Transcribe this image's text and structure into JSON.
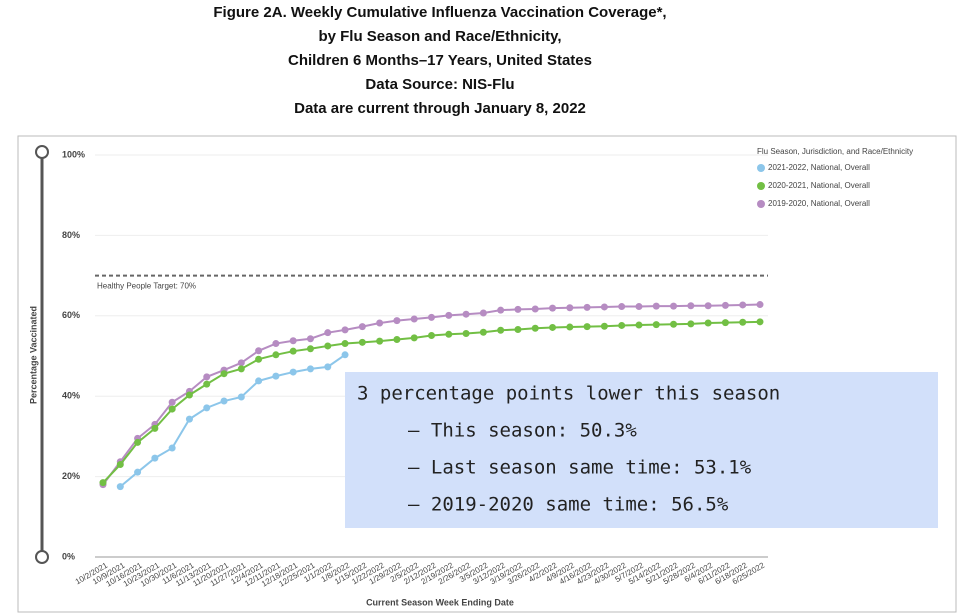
{
  "chart_data": {
    "type": "line",
    "title": [
      "Figure 2A. Weekly Cumulative Influenza Vaccination Coverage*,",
      "by Flu Season and Race/Ethnicity,",
      "Children 6 Months–17 Years, United States",
      "Data Source: NIS-Flu",
      "Data are current through January 8, 2022"
    ],
    "x_label": "Current Season Week Ending Date",
    "y_label": "Percentage Vaccinated",
    "legend_title": "Flu Season, Jurisdiction,  and Race/Ethnicity",
    "legend": "top-right",
    "categories": [
      "10/2/2021",
      "10/9/2021",
      "10/16/2021",
      "10/23/2021",
      "10/30/2021",
      "11/6/2021",
      "11/13/2021",
      "11/20/2021",
      "11/27/2021",
      "12/4/2021",
      "12/11/2021",
      "12/18/2021",
      "12/25/2021",
      "1/1/2022",
      "1/8/2022",
      "1/15/2022",
      "1/22/2022",
      "1/29/2022",
      "2/5/2022",
      "2/12/2022",
      "2/19/2022",
      "2/26/2022",
      "3/5/2022",
      "3/12/2022",
      "3/19/2022",
      "3/26/2022",
      "4/2/2022",
      "4/9/2022",
      "4/16/2022",
      "4/23/2022",
      "4/30/2022",
      "5/7/2022",
      "5/14/2022",
      "5/21/2022",
      "5/28/2022",
      "6/4/2022",
      "6/11/2022",
      "6/18/2022",
      "6/25/2022"
    ],
    "series": [
      {
        "name": "2021-2022, National, Overall",
        "color": "#8cc6ea",
        "values": [
          null,
          17.5,
          21.1,
          24.6,
          27.1,
          34.3,
          37.1,
          38.8,
          39.8,
          43.8,
          45.0,
          46.0,
          46.8,
          47.3,
          50.3,
          null,
          null,
          null,
          null,
          null,
          null,
          null,
          null,
          null,
          null,
          null,
          null,
          null,
          null,
          null,
          null,
          null,
          null,
          null,
          null,
          null,
          null,
          null,
          null
        ]
      },
      {
        "name": "2020-2021, National, Overall",
        "color": "#72bf44",
        "values": [
          18.5,
          23.0,
          28.5,
          32.0,
          36.8,
          40.3,
          43.0,
          45.6,
          46.8,
          49.2,
          50.3,
          51.2,
          51.8,
          52.5,
          53.1,
          53.4,
          53.7,
          54.1,
          54.5,
          55.1,
          55.4,
          55.6,
          55.9,
          56.4,
          56.6,
          56.9,
          57.1,
          57.2,
          57.3,
          57.4,
          57.6,
          57.7,
          57.8,
          57.9,
          58.0,
          58.2,
          58.3,
          58.4,
          58.5
        ]
      },
      {
        "name": "2019-2020, National, Overall",
        "color": "#b68cc2",
        "values": [
          18.0,
          23.7,
          29.5,
          33.0,
          38.5,
          41.2,
          44.8,
          46.5,
          48.3,
          51.3,
          53.1,
          53.8,
          54.3,
          55.8,
          56.5,
          57.3,
          58.2,
          58.8,
          59.2,
          59.6,
          60.1,
          60.4,
          60.7,
          61.4,
          61.6,
          61.7,
          61.9,
          62.0,
          62.1,
          62.2,
          62.3,
          62.3,
          62.4,
          62.4,
          62.5,
          62.5,
          62.6,
          62.7,
          62.8
        ]
      }
    ],
    "ylim": [
      0,
      100
    ],
    "yticks": [
      {
        "value": 0,
        "label": "0%"
      },
      {
        "value": 20,
        "label": "20%"
      },
      {
        "value": 40,
        "label": "40%"
      },
      {
        "value": 60,
        "label": "60%"
      },
      {
        "value": 80,
        "label": "80%"
      },
      {
        "value": 100,
        "label": "100%"
      }
    ],
    "grid": true,
    "target": {
      "value": 70,
      "label": "Healthy People Target: 70%"
    },
    "annotation": [
      "3 percentage points lower this season",
      "–  This season: 50.3%",
      "–  Last season same time: 53.1%",
      "–  2019-2020 same time: 56.5%"
    ]
  }
}
